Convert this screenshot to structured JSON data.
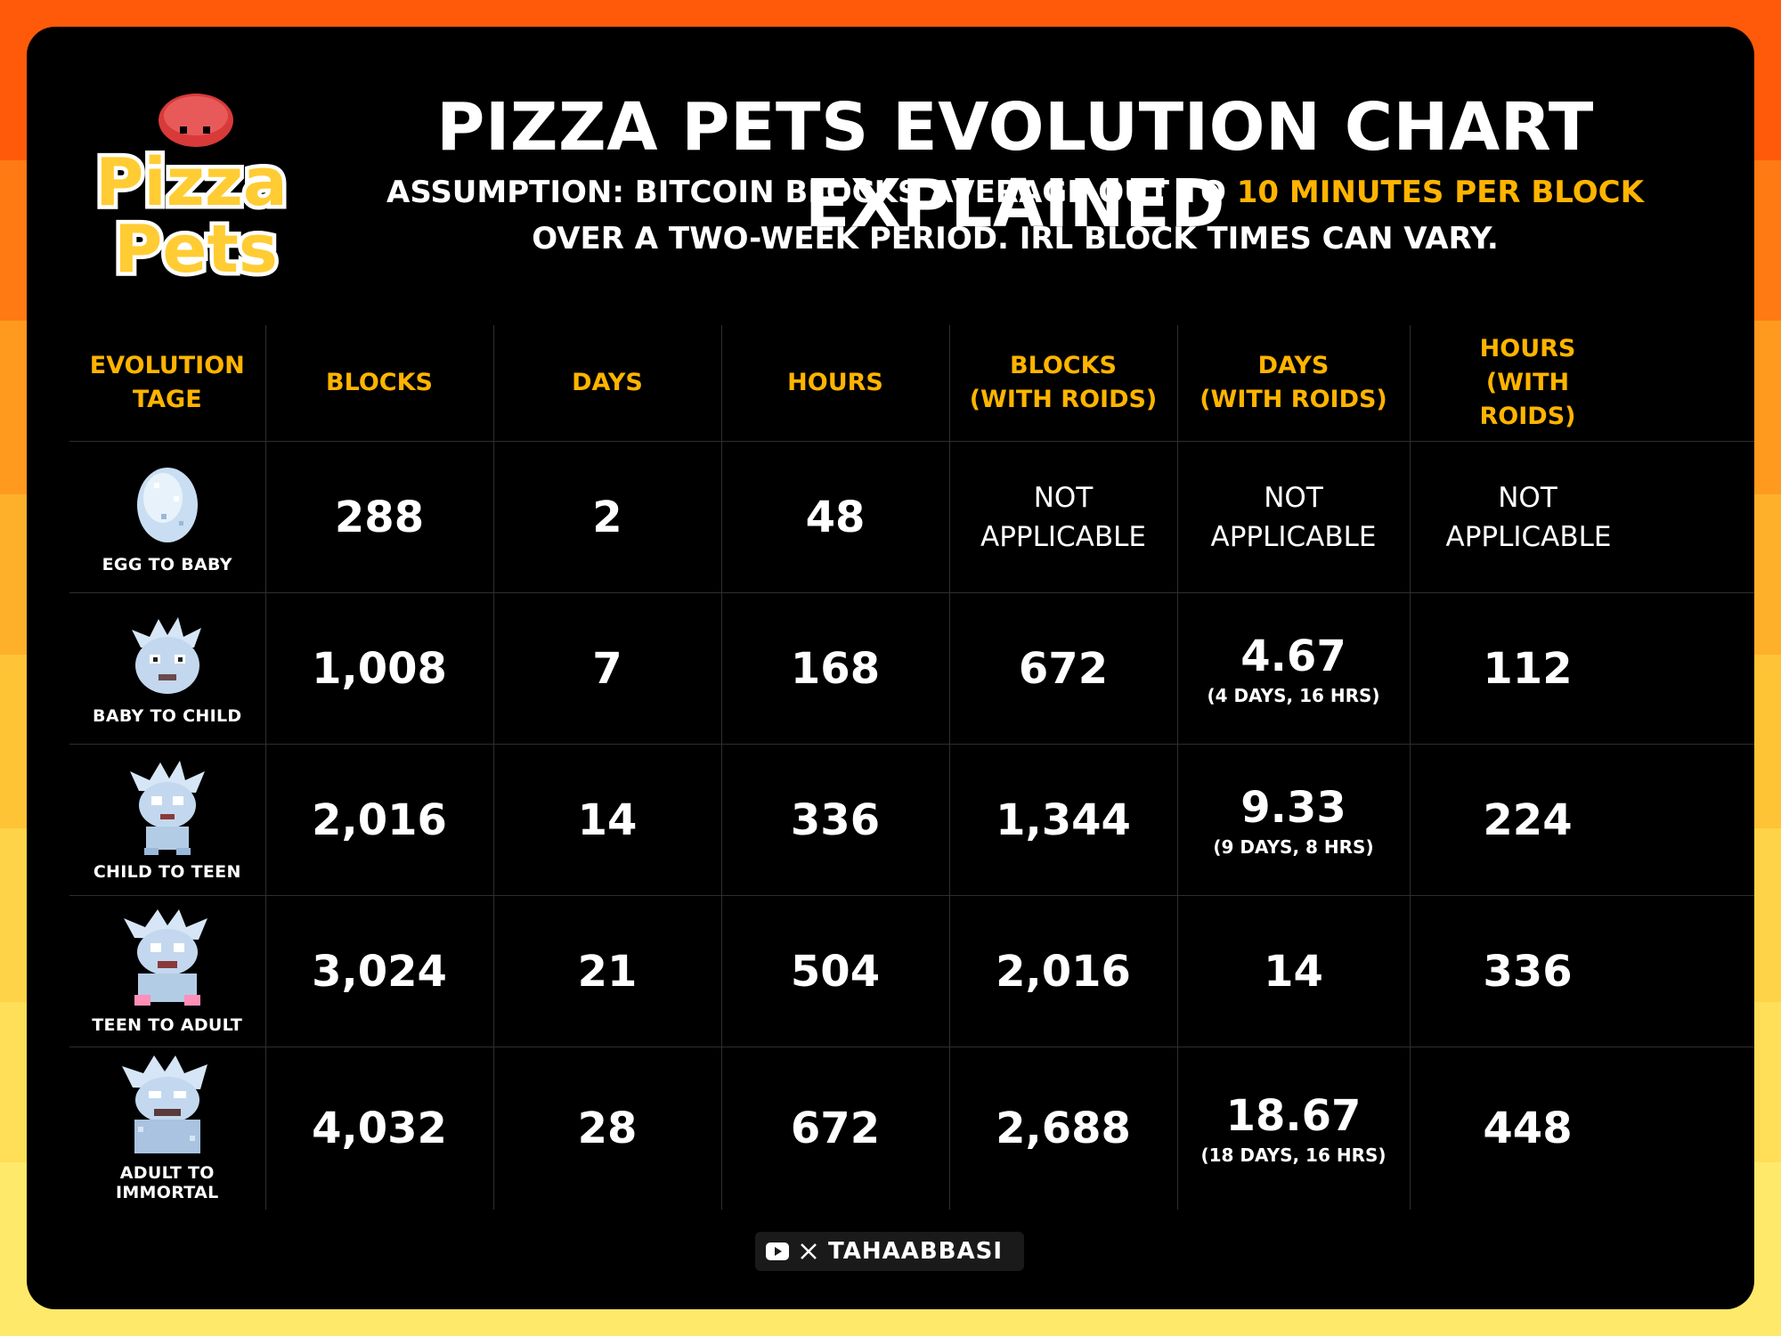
{
  "logo": {
    "text_line1": "Pizza",
    "text_line2": "Pets"
  },
  "title": "PIZZA PETS EVOLUTION CHART EXPLAINED",
  "subtitle": {
    "line1_prefix": "ASSUMPTION: BITCOIN BLOCKS AVERAGE OUT TO ",
    "line1_highlight": "10 MINUTES PER BLOCK",
    "line2": "OVER A TWO-WEEK PERIOD. IRL BLOCK TIMES CAN VARY."
  },
  "colors": {
    "accent": "#ffb400",
    "background": "#000000",
    "text": "#ffffff"
  },
  "table": {
    "headers": [
      {
        "line1": "EVOLUTION",
        "line2": "TAGE"
      },
      {
        "line1": "BLOCKS",
        "line2": ""
      },
      {
        "line1": "DAYS",
        "line2": ""
      },
      {
        "line1": "HOURS",
        "line2": ""
      },
      {
        "line1": "BLOCKS",
        "line2": "(WITH ROIDS)"
      },
      {
        "line1": "DAYS",
        "line2": "(WITH ROIDS)"
      },
      {
        "line1": "HOURS",
        "line2": "(WITH ROIDS)"
      }
    ],
    "not_applicable": {
      "line1": "NOT",
      "line2": "APPLICABLE"
    },
    "rows": [
      {
        "stage": "EGG TO BABY",
        "icon": "egg-icon",
        "blocks": "288",
        "days": "2",
        "hours": "48",
        "roid_blocks": "",
        "roid_days": "",
        "roid_days_detail": "",
        "roid_hours": ""
      },
      {
        "stage": "BABY TO CHILD",
        "icon": "baby-pet-icon",
        "blocks": "1,008",
        "days": "7",
        "hours": "168",
        "roid_blocks": "672",
        "roid_days": "4.67",
        "roid_days_detail": "(4 DAYS,  16 HRS)",
        "roid_hours": "112"
      },
      {
        "stage": "CHILD TO TEEN",
        "icon": "child-pet-icon",
        "blocks": "2,016",
        "days": "14",
        "hours": "336",
        "roid_blocks": "1,344",
        "roid_days": "9.33",
        "roid_days_detail": "(9 DAYS,  8 HRS)",
        "roid_hours": "224"
      },
      {
        "stage": "TEEN TO ADULT",
        "icon": "teen-pet-icon",
        "blocks": "3,024",
        "days": "21",
        "hours": "504",
        "roid_blocks": "2,016",
        "roid_days": "14",
        "roid_days_detail": "",
        "roid_hours": "336"
      },
      {
        "stage": "ADULT TO IMMORTAL",
        "icon": "adult-pet-icon",
        "blocks": "4,032",
        "days": "28",
        "hours": "672",
        "roid_blocks": "2,688",
        "roid_days": "18.67",
        "roid_days_detail": "(18 DAYS,  16 HRS)",
        "roid_hours": "448"
      }
    ]
  },
  "footer": {
    "handle": "TAHAABBASI",
    "icons": [
      "youtube-icon",
      "x-icon"
    ]
  }
}
